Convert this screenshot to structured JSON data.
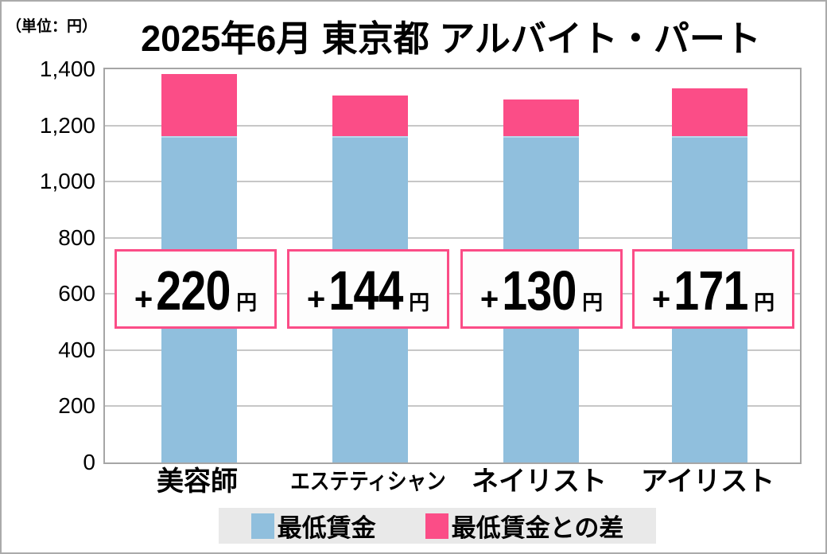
{
  "chart_data": {
    "type": "bar",
    "stacked": true,
    "title": "2025年6月 東京都 アルバイト・パート",
    "unit_label": "（単位：円）",
    "categories": [
      "美容師",
      "エステティシャン",
      "ネイリスト",
      "アイリスト"
    ],
    "series": [
      {
        "name": "最低賃金",
        "color": "#90bfdd",
        "values": [
          1163,
          1163,
          1163,
          1163
        ]
      },
      {
        "name": "最低賃金との差",
        "color": "#fb4d87",
        "values": [
          220,
          144,
          130,
          171
        ]
      }
    ],
    "totals": [
      1383,
      1307,
      1293,
      1334
    ],
    "annotation_prefix": "+",
    "annotation_values": [
      "220",
      "144",
      "130",
      "171"
    ],
    "annotation_unit": "円",
    "y_ticks": [
      "1,400",
      "1,200",
      "1,000",
      "800",
      "600",
      "400",
      "200",
      "0"
    ],
    "ylim": [
      0,
      1400
    ],
    "grid": true,
    "legend_position": "bottom",
    "legend_background": "#e9e9e9",
    "annotation_border_color": "#fb4d87",
    "legend": [
      {
        "label": "最低賃金",
        "color": "#90bfdd"
      },
      {
        "label": "最低賃金との差",
        "color": "#fb4d87"
      }
    ]
  }
}
